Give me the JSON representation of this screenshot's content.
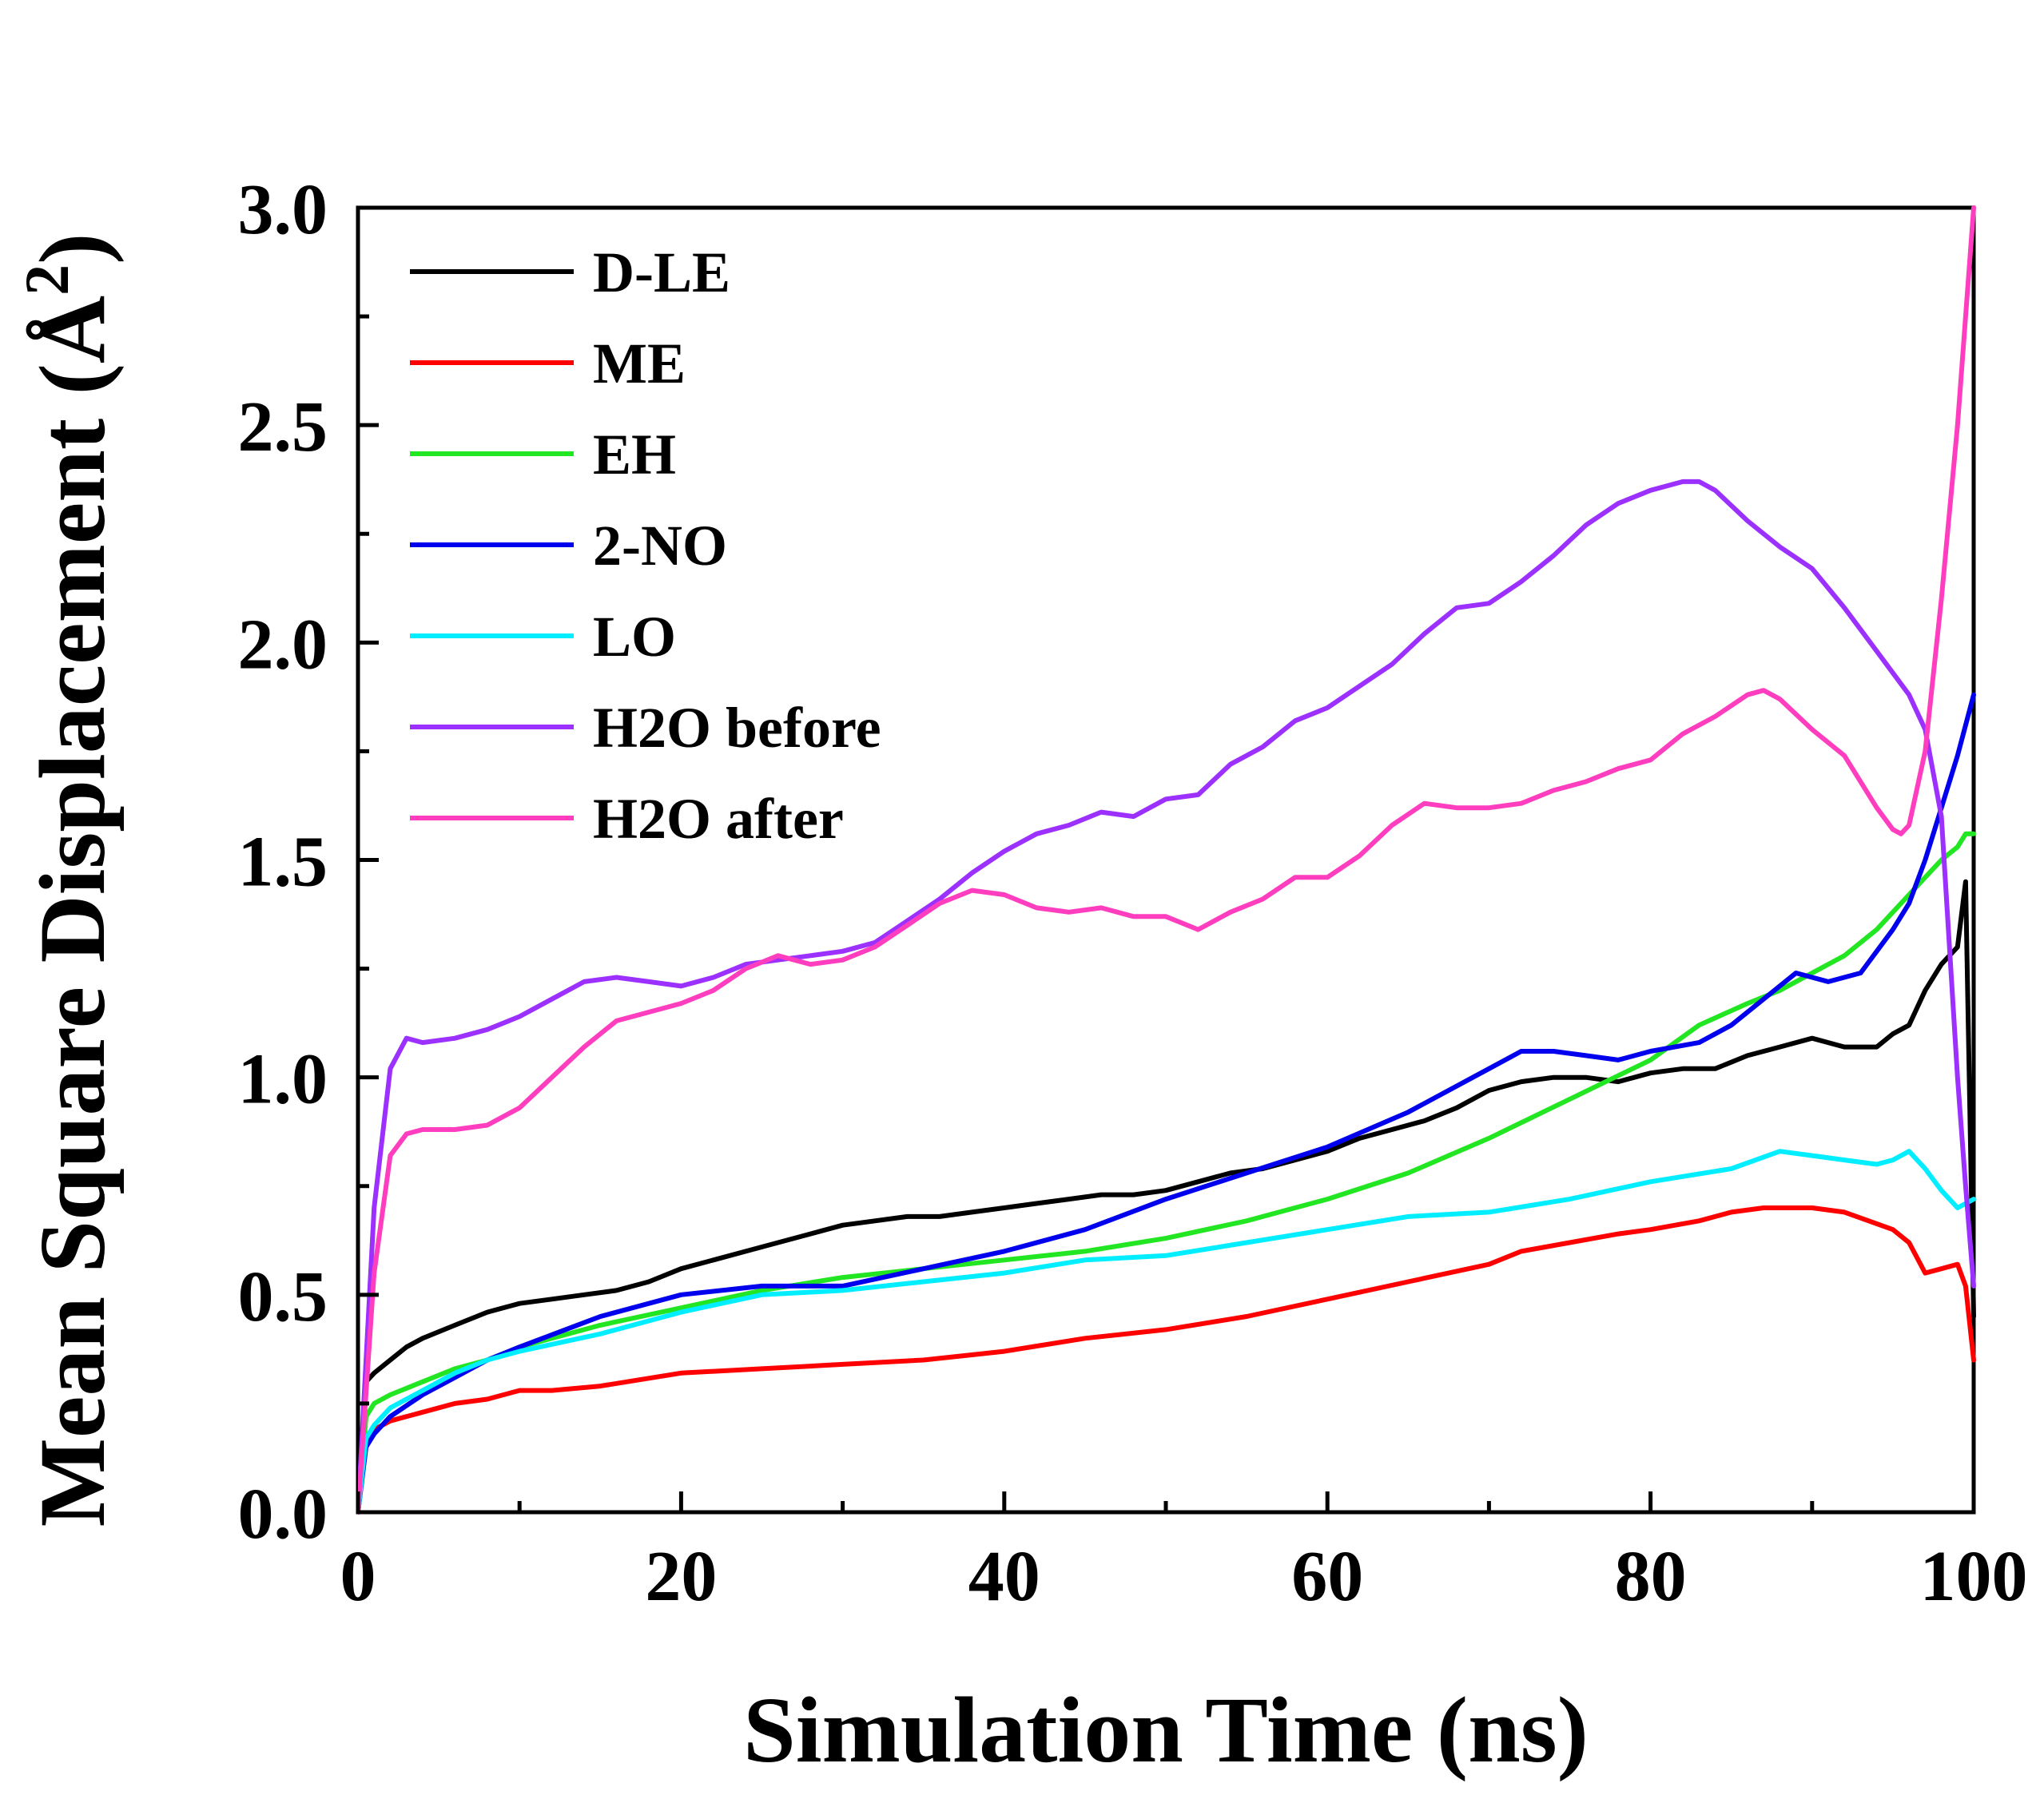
{
  "chart_data": {
    "type": "line",
    "title": "",
    "xlabel": "Simulation Time (ns)",
    "ylabel_main": "Mean Square Displacement (",
    "ylabel_unit": "Å",
    "ylabel_sup": "2",
    "ylabel_close": ")",
    "xlim": [
      0,
      100
    ],
    "ylim": [
      0,
      3.0
    ],
    "x_ticks": [
      0,
      20,
      40,
      60,
      80,
      100
    ],
    "x_tick_labels": [
      "0",
      "20",
      "40",
      "60",
      "80",
      "100"
    ],
    "y_ticks": [
      0,
      0.5,
      1.0,
      1.5,
      2.0,
      2.5,
      3.0
    ],
    "y_tick_labels": [
      "0.0",
      "0.5",
      "1.0",
      "1.5",
      "2.0",
      "2.5",
      "3.0"
    ],
    "grid": false,
    "legend_position": "top-left",
    "series": [
      {
        "name": "D-LE",
        "color": "#000000",
        "x": [
          0,
          0.5,
          1,
          2,
          3,
          4,
          6,
          8,
          10,
          12,
          14,
          16,
          18,
          20,
          22,
          24,
          26,
          28,
          30,
          32,
          34,
          36,
          38,
          40,
          42,
          44,
          46,
          48,
          50,
          52,
          54,
          56,
          58,
          60,
          62,
          64,
          66,
          68,
          70,
          72,
          74,
          76,
          78,
          80,
          82,
          84,
          86,
          88,
          90,
          92,
          94,
          95,
          96,
          97,
          98,
          99,
          99.5,
          100
        ],
        "y": [
          0.0,
          0.3,
          0.32,
          0.35,
          0.38,
          0.4,
          0.43,
          0.46,
          0.48,
          0.49,
          0.5,
          0.51,
          0.53,
          0.56,
          0.58,
          0.6,
          0.62,
          0.64,
          0.66,
          0.67,
          0.68,
          0.68,
          0.69,
          0.7,
          0.71,
          0.72,
          0.73,
          0.73,
          0.74,
          0.76,
          0.78,
          0.79,
          0.81,
          0.83,
          0.86,
          0.88,
          0.9,
          0.93,
          0.97,
          0.99,
          1.0,
          1.0,
          0.99,
          1.01,
          1.02,
          1.02,
          1.05,
          1.07,
          1.09,
          1.07,
          1.07,
          1.1,
          1.12,
          1.2,
          1.26,
          1.3,
          1.45,
          0.45
        ]
      },
      {
        "name": "ME",
        "color": "#ff0000",
        "x": [
          0,
          0.5,
          1,
          2,
          4,
          6,
          8,
          10,
          12,
          15,
          20,
          25,
          30,
          35,
          40,
          45,
          50,
          55,
          60,
          65,
          70,
          72,
          75,
          78,
          80,
          83,
          85,
          87,
          90,
          92,
          95,
          96,
          97,
          98,
          99,
          99.5,
          100
        ],
        "y": [
          0.0,
          0.16,
          0.19,
          0.21,
          0.23,
          0.25,
          0.26,
          0.28,
          0.28,
          0.29,
          0.32,
          0.33,
          0.34,
          0.35,
          0.37,
          0.4,
          0.42,
          0.45,
          0.49,
          0.53,
          0.57,
          0.6,
          0.62,
          0.64,
          0.65,
          0.67,
          0.69,
          0.7,
          0.7,
          0.69,
          0.65,
          0.62,
          0.55,
          0.56,
          0.57,
          0.52,
          0.35
        ]
      },
      {
        "name": "EH",
        "color": "#22e622",
        "x": [
          0,
          0.5,
          1,
          2,
          4,
          6,
          8,
          10,
          15,
          20,
          25,
          30,
          35,
          40,
          45,
          50,
          55,
          60,
          65,
          70,
          75,
          80,
          83,
          86,
          88,
          90,
          92,
          94,
          96,
          98,
          99,
          99.5,
          100
        ],
        "y": [
          0.0,
          0.22,
          0.25,
          0.27,
          0.3,
          0.33,
          0.35,
          0.38,
          0.43,
          0.47,
          0.51,
          0.54,
          0.56,
          0.58,
          0.6,
          0.63,
          0.67,
          0.72,
          0.78,
          0.86,
          0.95,
          1.04,
          1.12,
          1.17,
          1.2,
          1.24,
          1.28,
          1.34,
          1.42,
          1.5,
          1.53,
          1.56,
          1.56
        ]
      },
      {
        "name": "2-NO",
        "color": "#0000ee",
        "x": [
          0,
          0.5,
          1,
          2,
          4,
          6,
          8,
          10,
          15,
          20,
          25,
          30,
          35,
          40,
          45,
          50,
          55,
          60,
          65,
          70,
          72,
          74,
          76,
          78,
          80,
          83,
          85,
          87,
          89,
          91,
          93,
          95,
          96,
          97,
          98,
          99,
          100
        ],
        "y": [
          0.0,
          0.15,
          0.18,
          0.22,
          0.27,
          0.31,
          0.35,
          0.38,
          0.45,
          0.5,
          0.52,
          0.52,
          0.56,
          0.6,
          0.65,
          0.72,
          0.78,
          0.84,
          0.92,
          1.02,
          1.06,
          1.06,
          1.05,
          1.04,
          1.06,
          1.08,
          1.12,
          1.18,
          1.24,
          1.22,
          1.24,
          1.34,
          1.4,
          1.5,
          1.62,
          1.74,
          1.88
        ]
      },
      {
        "name": "LO",
        "color": "#00eeff",
        "x": [
          0,
          0.5,
          1,
          2,
          4,
          6,
          8,
          10,
          15,
          20,
          25,
          30,
          35,
          40,
          45,
          50,
          55,
          60,
          65,
          70,
          75,
          80,
          85,
          88,
          90,
          92,
          94,
          95,
          96,
          97,
          98,
          99,
          100
        ],
        "y": [
          0.0,
          0.17,
          0.2,
          0.24,
          0.28,
          0.32,
          0.35,
          0.37,
          0.41,
          0.46,
          0.5,
          0.51,
          0.53,
          0.55,
          0.58,
          0.59,
          0.62,
          0.65,
          0.68,
          0.69,
          0.72,
          0.76,
          0.79,
          0.83,
          0.82,
          0.81,
          0.8,
          0.81,
          0.83,
          0.79,
          0.74,
          0.7,
          0.72
        ]
      },
      {
        "name": "H2O before",
        "color": "#9b30ff",
        "x": [
          0,
          1,
          2,
          3,
          4,
          6,
          8,
          10,
          12,
          14,
          16,
          18,
          20,
          22,
          24,
          26,
          28,
          30,
          32,
          34,
          36,
          38,
          40,
          42,
          44,
          46,
          48,
          50,
          52,
          54,
          56,
          58,
          60,
          62,
          64,
          66,
          68,
          70,
          72,
          74,
          76,
          78,
          80,
          82,
          83,
          84,
          86,
          88,
          90,
          92,
          94,
          96,
          97,
          98,
          98.5,
          99,
          99.5,
          100
        ],
        "y": [
          0.0,
          0.7,
          1.02,
          1.09,
          1.08,
          1.09,
          1.11,
          1.14,
          1.18,
          1.22,
          1.23,
          1.22,
          1.21,
          1.23,
          1.26,
          1.27,
          1.28,
          1.29,
          1.31,
          1.36,
          1.41,
          1.47,
          1.52,
          1.56,
          1.58,
          1.61,
          1.6,
          1.64,
          1.65,
          1.72,
          1.76,
          1.82,
          1.85,
          1.9,
          1.95,
          2.02,
          2.08,
          2.09,
          2.14,
          2.2,
          2.27,
          2.32,
          2.35,
          2.37,
          2.37,
          2.35,
          2.28,
          2.22,
          2.17,
          2.08,
          1.98,
          1.88,
          1.8,
          1.6,
          1.3,
          1.0,
          0.75,
          0.52
        ]
      },
      {
        "name": "H2O after",
        "color": "#ff3ebf",
        "x": [
          0,
          1,
          2,
          3,
          4,
          6,
          8,
          10,
          12,
          14,
          16,
          18,
          20,
          22,
          24,
          26,
          28,
          30,
          32,
          34,
          36,
          38,
          40,
          42,
          44,
          46,
          48,
          50,
          52,
          54,
          56,
          58,
          60,
          62,
          64,
          66,
          68,
          70,
          72,
          74,
          76,
          78,
          80,
          82,
          84,
          86,
          87,
          88,
          90,
          92,
          94,
          95,
          95.5,
          96,
          97,
          98,
          99,
          100
        ],
        "y": [
          0.0,
          0.55,
          0.82,
          0.87,
          0.88,
          0.88,
          0.89,
          0.93,
          1.0,
          1.07,
          1.13,
          1.15,
          1.17,
          1.2,
          1.25,
          1.28,
          1.26,
          1.27,
          1.3,
          1.35,
          1.4,
          1.43,
          1.42,
          1.39,
          1.38,
          1.39,
          1.37,
          1.37,
          1.34,
          1.38,
          1.41,
          1.46,
          1.46,
          1.51,
          1.58,
          1.63,
          1.62,
          1.62,
          1.63,
          1.66,
          1.68,
          1.71,
          1.73,
          1.79,
          1.83,
          1.88,
          1.89,
          1.87,
          1.8,
          1.74,
          1.62,
          1.57,
          1.56,
          1.58,
          1.75,
          2.1,
          2.5,
          3.0
        ]
      }
    ]
  }
}
